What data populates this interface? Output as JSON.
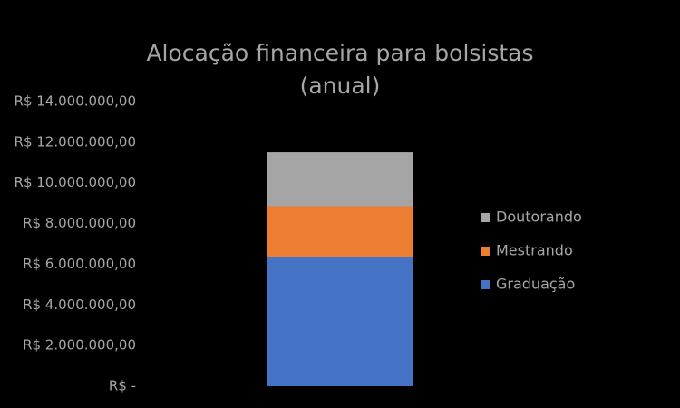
{
  "chart_data": {
    "type": "stacked_bar",
    "title": [
      "Alocação financeira para bolsistas",
      "(anual)"
    ],
    "categories": [
      null
    ],
    "series": [
      {
        "name": "Graduação",
        "color": "#4472c4",
        "values": [
          6350000
        ]
      },
      {
        "name": "Mestrando",
        "color": "#ed7d31",
        "values": [
          2500000
        ]
      },
      {
        "name": "Doutorando",
        "color": "#a5a5a5",
        "values": [
          2650000
        ]
      }
    ],
    "ylim": [
      0,
      14000000
    ],
    "yticks": [
      {
        "value": 0,
        "label": "R$ -"
      },
      {
        "value": 2000000,
        "label": "R$ 2.000.000,00"
      },
      {
        "value": 4000000,
        "label": "R$ 4.000.000,00"
      },
      {
        "value": 6000000,
        "label": "R$ 6.000.000,00"
      },
      {
        "value": 8000000,
        "label": "R$ 8.000.000,00"
      },
      {
        "value": 10000000,
        "label": "R$ 10.000.000,00"
      },
      {
        "value": 12000000,
        "label": "R$ 12.000.000,00"
      },
      {
        "value": 14000000,
        "label": "R$ 14.000.000,00"
      }
    ],
    "grid": false,
    "legend": "right"
  }
}
